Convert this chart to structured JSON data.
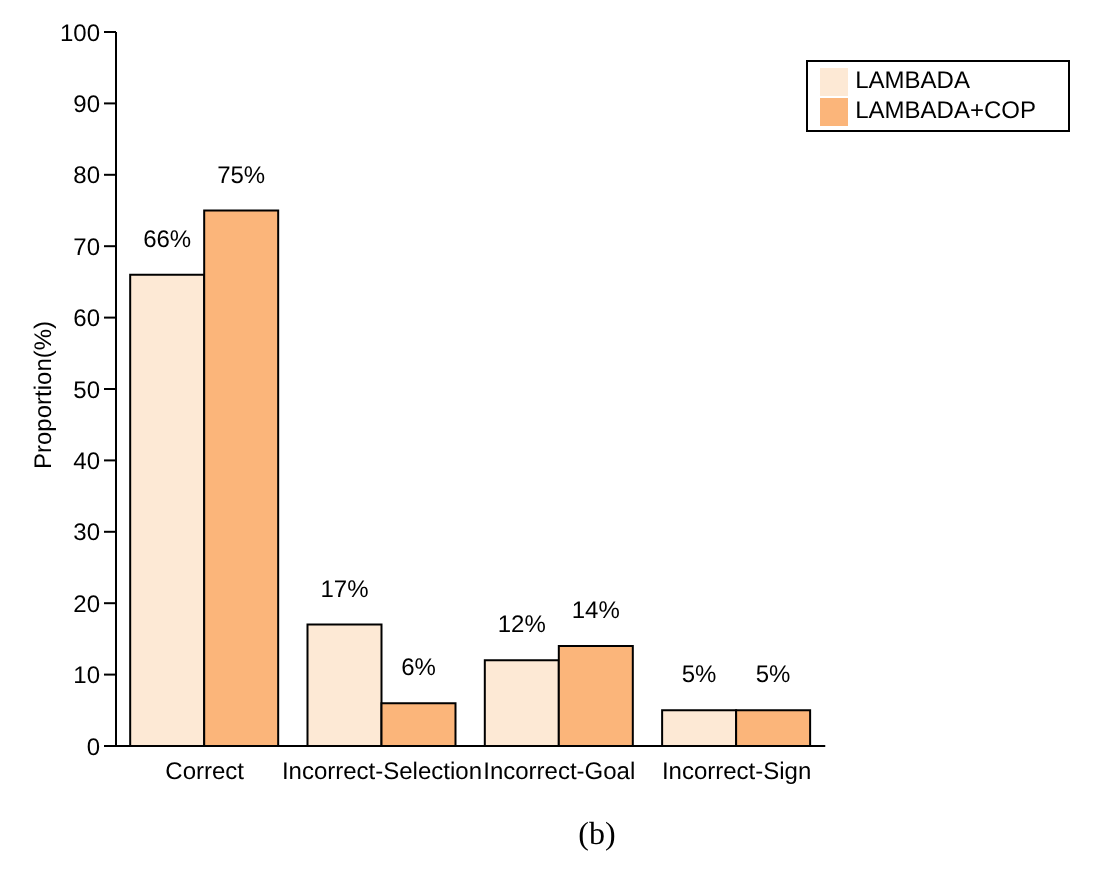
{
  "chart_data": {
    "type": "bar",
    "categories": [
      "Correct",
      "Incorrect-Selection",
      "Incorrect-Goal",
      "Incorrect-Sign"
    ],
    "series": [
      {
        "name": "LAMBADA",
        "color": "#fde9d5",
        "values": [
          66,
          17,
          12,
          5
        ],
        "value_labels": [
          "66%",
          "17%",
          "12%",
          "5%"
        ]
      },
      {
        "name": "LAMBADA+COP",
        "color": "#fbb57a",
        "values": [
          75,
          6,
          14,
          5
        ],
        "value_labels": [
          "75%",
          "6%",
          "14%",
          "5%"
        ]
      }
    ],
    "ylabel": "Proportion(%)",
    "ylim": [
      0,
      100
    ],
    "yticks": [
      0,
      10,
      20,
      30,
      40,
      50,
      60,
      70,
      80,
      90,
      100
    ],
    "grid": false,
    "legend": "top right",
    "annotations": [
      "(b)"
    ]
  }
}
